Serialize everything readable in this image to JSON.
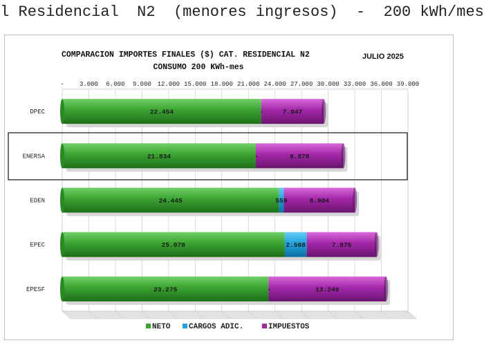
{
  "page": {
    "title": "l Residencial  N2  (menores ingresos)  -  200 kWh/mes"
  },
  "chart_data": {
    "type": "bar",
    "orientation": "horizontal",
    "stacked": true,
    "title": "COMPARACION IMPORTES FINALES ($) CAT. RESIDENCIAL N2",
    "title_tag": "JULIO 2025",
    "subtitle": "CONSUMO 200 KWh-mes",
    "categories": [
      "DPEC",
      "ENERSA",
      "EDEN",
      "EPEC",
      "EPESF"
    ],
    "series": [
      {
        "name": "NETO",
        "color": "#3aa331",
        "values": [
          22454,
          21834,
          24445,
          25078,
          23275
        ],
        "labels": [
          "22.454",
          "21.834",
          "24.445",
          "25.078",
          "23.275"
        ]
      },
      {
        "name": "CARGOS ADIC.",
        "color": "#1fa3dd",
        "values": [
          0,
          0,
          559,
          2508,
          0
        ],
        "labels": [
          "-",
          "-",
          "559",
          "2.508",
          "-"
        ]
      },
      {
        "name": "IMPUESTOS",
        "color": "#a327a8",
        "values": [
          7047,
          9878,
          8004,
          7875,
          13249
        ],
        "labels": [
          "7.047",
          "9.878",
          "8.004",
          "7.875",
          "13.249"
        ]
      }
    ],
    "x_ticks": [
      "-",
      "3.000",
      "6.000",
      "9.000",
      "12.000",
      "15.000",
      "18.000",
      "21.000",
      "24.000",
      "27.000",
      "30.000",
      "33.000",
      "36.000",
      "39.000"
    ],
    "xlim": [
      0,
      39000
    ],
    "x_axis_position": "top",
    "grid": true,
    "legend": "bottom",
    "highlighted_category": "ENERSA"
  }
}
